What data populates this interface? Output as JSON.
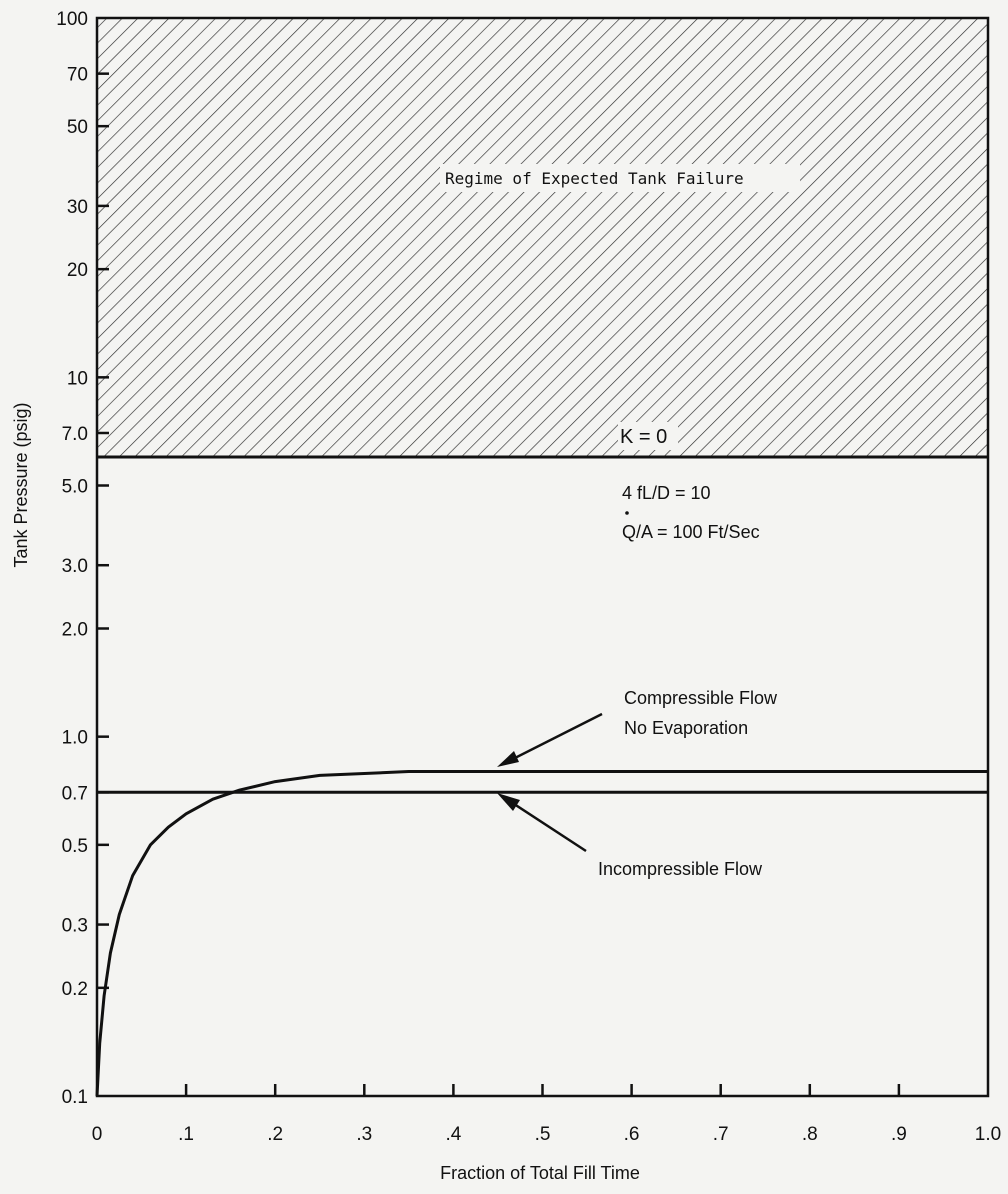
{
  "chart_data": {
    "type": "line",
    "xlabel": "Fraction of Total Fill Time",
    "ylabel": "Tank Pressure (psig)",
    "y_scale": "log",
    "xlim": [
      0,
      1.0
    ],
    "ylim": [
      0.1,
      100
    ],
    "x_ticks": [
      {
        "value": 0,
        "label": "0"
      },
      {
        "value": 0.1,
        "label": ".1"
      },
      {
        "value": 0.2,
        "label": ".2"
      },
      {
        "value": 0.3,
        "label": ".3"
      },
      {
        "value": 0.4,
        "label": ".4"
      },
      {
        "value": 0.5,
        "label": ".5"
      },
      {
        "value": 0.6,
        "label": ".6"
      },
      {
        "value": 0.7,
        "label": ".7"
      },
      {
        "value": 0.8,
        "label": ".8"
      },
      {
        "value": 0.9,
        "label": ".9"
      },
      {
        "value": 1.0,
        "label": "1.0"
      }
    ],
    "y_ticks": [
      {
        "value": 0.1,
        "label": "0.1"
      },
      {
        "value": 0.2,
        "label": "0.2"
      },
      {
        "value": 0.3,
        "label": "0.3"
      },
      {
        "value": 0.5,
        "label": "0.5"
      },
      {
        "value": 0.7,
        "label": "0.7"
      },
      {
        "value": 1.0,
        "label": "1.0"
      },
      {
        "value": 2.0,
        "label": "2.0"
      },
      {
        "value": 3.0,
        "label": "3.0"
      },
      {
        "value": 5.0,
        "label": "5.0"
      },
      {
        "value": 7.0,
        "label": "7.0"
      },
      {
        "value": 10,
        "label": "10"
      },
      {
        "value": 20,
        "label": "20"
      },
      {
        "value": 30,
        "label": "30"
      },
      {
        "value": 50,
        "label": "50"
      },
      {
        "value": 70,
        "label": "70"
      },
      {
        "value": 100,
        "label": "100"
      }
    ],
    "grid": false,
    "failure_region": {
      "y_min": 6.0,
      "y_max": 100,
      "label": "Regime of Expected Tank Failure"
    },
    "series": [
      {
        "name": "Compressible Flow No Evaporation",
        "x": [
          0.0,
          0.003,
          0.008,
          0.015,
          0.025,
          0.04,
          0.06,
          0.08,
          0.1,
          0.13,
          0.16,
          0.2,
          0.25,
          0.3,
          0.35,
          0.4,
          0.5,
          0.6,
          0.7,
          0.8,
          0.9,
          1.0
        ],
        "y": [
          0.1,
          0.14,
          0.19,
          0.25,
          0.32,
          0.41,
          0.5,
          0.56,
          0.61,
          0.67,
          0.71,
          0.75,
          0.78,
          0.79,
          0.8,
          0.8,
          0.8,
          0.8,
          0.8,
          0.8,
          0.8,
          0.8
        ]
      },
      {
        "name": "Incompressible Flow",
        "x": [
          0.0,
          1.0
        ],
        "y": [
          0.7,
          0.7
        ]
      }
    ],
    "annotations": [
      {
        "text": "K = 0"
      },
      {
        "text": "4 fL/D = 10"
      },
      {
        "text": "Q/A = 100 Ft/Sec"
      },
      {
        "text": "Compressible Flow"
      },
      {
        "text": "No Evaporation"
      },
      {
        "text": "Incompressible Flow"
      }
    ]
  }
}
